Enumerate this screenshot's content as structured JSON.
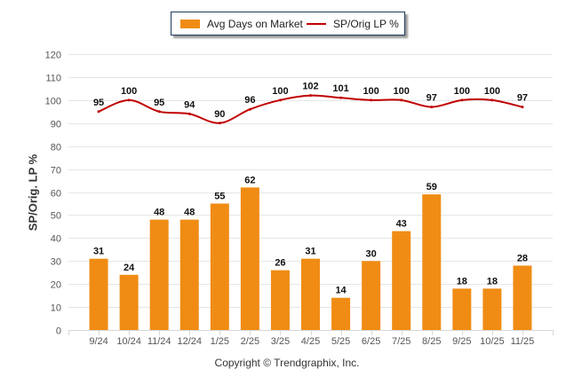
{
  "legend": {
    "bar_label": "Avg Days on Market",
    "line_label": "SP/Orig LP %"
  },
  "copyright": "Copyright © Trendgraphix, Inc.",
  "colors": {
    "bar": "#f08c14",
    "line": "#c00000",
    "grid": "#e6e6e6",
    "axis_text": "#555555",
    "label_text": "#111111"
  },
  "chart_data": {
    "type": "bar+line",
    "title": "",
    "xlabel": "",
    "ylabel": "SP/Orig. LP %",
    "ylim": [
      0,
      120
    ],
    "yticks": [
      0,
      10,
      20,
      30,
      40,
      50,
      60,
      70,
      80,
      90,
      100,
      110,
      120
    ],
    "grid": true,
    "legend_position": "top-center",
    "categories": [
      "9/24",
      "10/24",
      "11/24",
      "12/24",
      "1/25",
      "2/25",
      "3/25",
      "4/25",
      "5/25",
      "6/25",
      "7/25",
      "8/25",
      "9/25",
      "10/25",
      "11/25"
    ],
    "series": [
      {
        "name": "Avg Days on Market",
        "type": "bar",
        "values": [
          31,
          24,
          48,
          48,
          55,
          62,
          26,
          31,
          14,
          30,
          43,
          59,
          18,
          18,
          28
        ]
      },
      {
        "name": "SP/Orig LP %",
        "type": "line",
        "values": [
          95,
          100,
          95,
          94,
          90,
          96,
          100,
          102,
          101,
          100,
          100,
          97,
          100,
          100,
          97
        ]
      }
    ]
  }
}
